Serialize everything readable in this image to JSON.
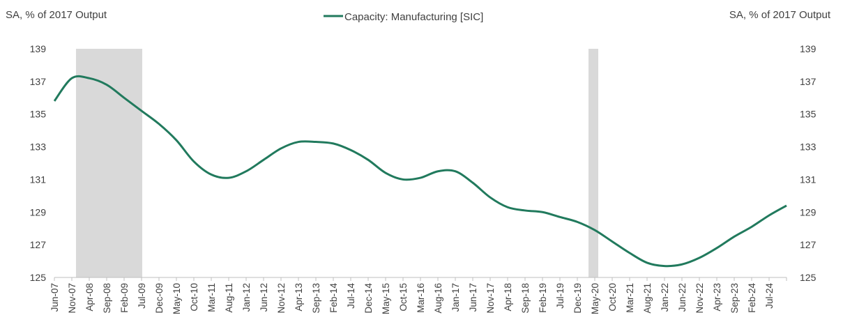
{
  "chart_data": {
    "type": "line",
    "legend": "Capacity: Manufacturing [SIC]",
    "ylabel": "SA, % of 2017 Output",
    "y2label": "SA, % of 2017 Output",
    "categories": [
      "Jun-07",
      "Nov-07",
      "Apr-08",
      "Sep-08",
      "Feb-09",
      "Jul-09",
      "Dec-09",
      "May-10",
      "Oct-10",
      "Mar-11",
      "Aug-11",
      "Jan-12",
      "Jun-12",
      "Nov-12",
      "Apr-13",
      "Sep-13",
      "Feb-14",
      "Jul-14",
      "Dec-14",
      "May-15",
      "Oct-15",
      "Mar-16",
      "Aug-16",
      "Jan-17",
      "Jun-17",
      "Nov-17",
      "Apr-18",
      "Sep-18",
      "Feb-19",
      "Jul-19",
      "Dec-19",
      "May-20",
      "Oct-20",
      "Mar-21",
      "Aug-21",
      "Jan-22",
      "Jun-22",
      "Nov-22",
      "Apr-23",
      "Sep-23",
      "Feb-24",
      "Jul-24",
      null
    ],
    "series": [
      {
        "name": "Capacity: Manufacturing [SIC]",
        "color": "#217a5d",
        "values": [
          135.8,
          137.2,
          137.2,
          136.8,
          136.0,
          135.2,
          134.4,
          133.4,
          132.1,
          131.3,
          131.1,
          131.5,
          132.2,
          132.9,
          133.3,
          133.3,
          133.2,
          132.8,
          132.2,
          131.4,
          131.0,
          131.1,
          131.5,
          131.5,
          130.8,
          129.9,
          129.3,
          129.1,
          129.0,
          128.7,
          128.4,
          127.9,
          127.2,
          126.5,
          125.9,
          125.7,
          125.8,
          126.2,
          126.8,
          127.5,
          128.1,
          128.8,
          129.4
        ]
      }
    ],
    "shaded_ranges": [
      {
        "start": 1.24,
        "end": 5.04
      },
      {
        "start": 30.64,
        "end": 31.2
      }
    ],
    "shade_color": "#d9d9d9",
    "ylim": [
      125,
      139
    ],
    "yticks": [
      125,
      127,
      129,
      131,
      133,
      135,
      137,
      139
    ],
    "y2lim": [
      125,
      139
    ],
    "y2ticks": [
      125,
      127,
      129,
      131,
      133,
      135,
      137,
      139
    ]
  }
}
